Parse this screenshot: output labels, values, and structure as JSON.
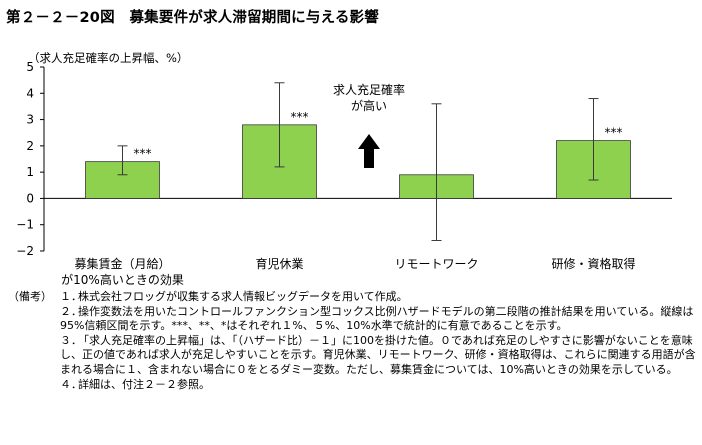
{
  "figure_title": "第２－２－20図　募集要件が求人滞留期間に与える影響",
  "chart_data": {
    "type": "bar",
    "title": "",
    "ylabel": "（求人充足確率の上昇幅、%）",
    "xlabel": "",
    "ylim": [
      -2,
      5
    ],
    "yticks": [
      "−2",
      "−1",
      "0",
      "1",
      "2",
      "3",
      "4",
      "5"
    ],
    "categories": [
      "募集賃金（月給）",
      "育児休業",
      "リモートワーク",
      "研修・資格取得"
    ],
    "category_sublabels": [
      "が10%高いときの効果",
      "",
      "",
      ""
    ],
    "values": [
      1.4,
      2.8,
      0.9,
      2.2
    ],
    "ci_low": [
      0.9,
      1.2,
      -1.6,
      0.7
    ],
    "ci_high": [
      2.0,
      4.4,
      3.6,
      3.8
    ],
    "significance": [
      "***",
      "***",
      "",
      "***"
    ],
    "bar_color": "#8dd14f",
    "bar_stroke": "#3a3a3a",
    "annotation": {
      "line1": "求人充足確率",
      "line2": "が高い",
      "arrow": "up-arrow"
    },
    "grid": false
  },
  "notes": {
    "label": "（備考）",
    "items": [
      {
        "num": "１．",
        "text": "株式会社フロッグが収集する求人情報ビッグデータを用いて作成。"
      },
      {
        "num": "２．",
        "text": "操作変数法を用いたコントロールファンクション型コックス比例ハザードモデルの第二段階の推計結果を用いている。縦線は95%信頼区間を示す。***、**、*はそれぞれ１%、５%、10%水準で統計的に有意であることを示す。"
      },
      {
        "num": "３．",
        "text": "「求人充足確率の上昇幅」は、「（ハザード比）－１」に100を掛けた値。０であれば充足のしやすさに影響がないことを意味し、正の値であれば求人が充足しやすいことを示す。育児休業、リモートワーク、研修・資格取得は、これらに関連する用語が含まれる場合に１、含まれない場合に０をとるダミー変数。ただし、募集賃金については、10%高いときの効果を示している。"
      },
      {
        "num": "４．",
        "text": "詳細は、付注２－２参照。"
      }
    ]
  }
}
